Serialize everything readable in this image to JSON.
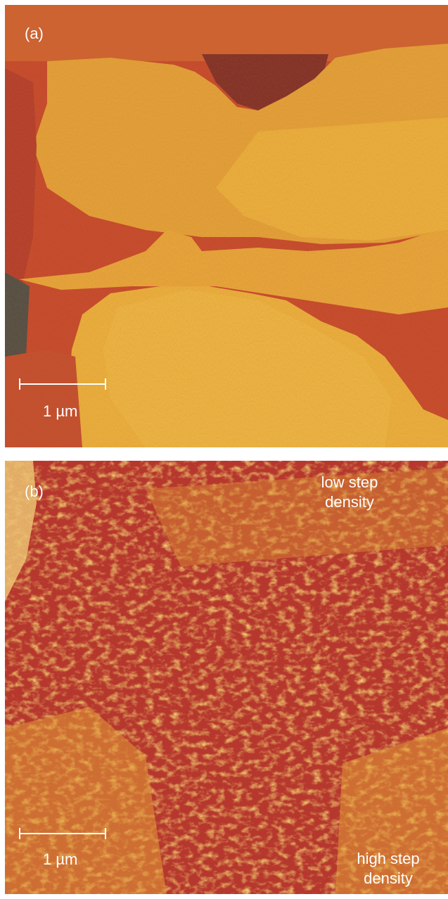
{
  "panel_a": {
    "label": "(a)",
    "scale_bar": "1 µm"
  },
  "panel_b": {
    "label": "(b)",
    "scale_bar": "1 µm",
    "annotation_top_line1": "low step",
    "annotation_top_line2": "density",
    "annotation_bottom_line1": "high step",
    "annotation_bottom_line2": "density"
  },
  "colors": {
    "terrace_high": "#f2b43a",
    "terrace_mid": "#e4a035",
    "terrace_low": "#c8452a",
    "deep": "#7d2a25",
    "hole": "#4a4b45",
    "text": "#ffffff"
  }
}
